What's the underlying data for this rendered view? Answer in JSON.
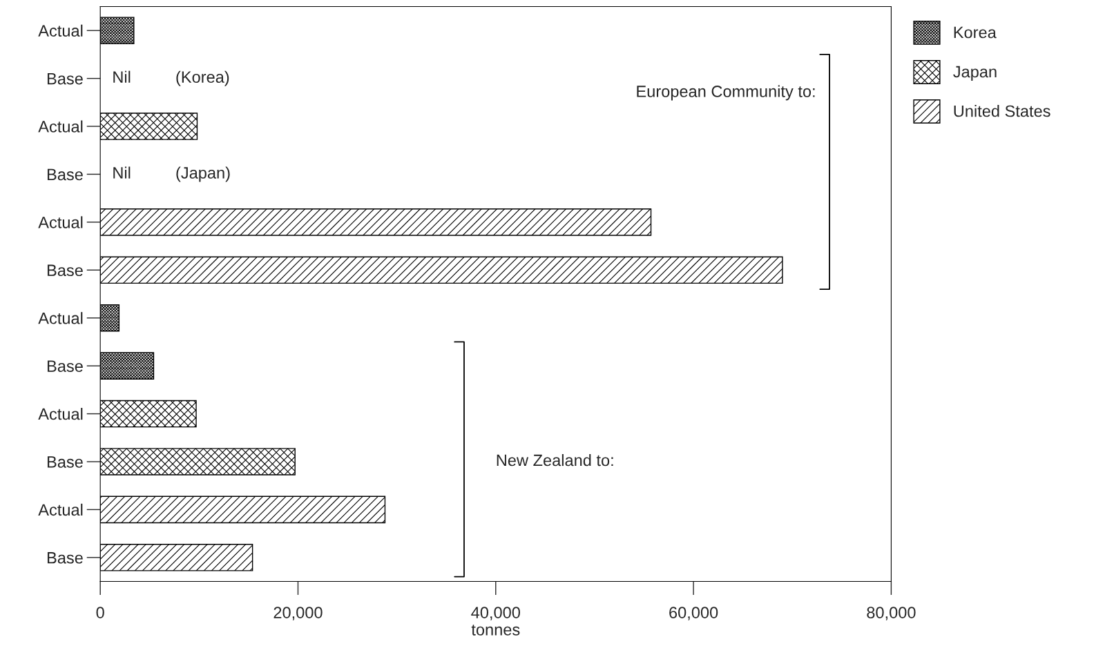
{
  "chart_data": {
    "type": "bar",
    "orientation": "horizontal",
    "xlabel": "tonnes",
    "categories": [
      "Actual",
      "Base",
      "Actual",
      "Base",
      "Actual",
      "Base",
      "Actual",
      "Base",
      "Actual",
      "Base",
      "Actual",
      "Base"
    ],
    "series": [
      {
        "name": "Korea",
        "color": "#000000",
        "values": [
          3400,
          null,
          null,
          null,
          null,
          null,
          1900,
          5400,
          null,
          null,
          null,
          null
        ]
      },
      {
        "name": "Japan",
        "color": "#000000",
        "values": [
          null,
          null,
          9800,
          null,
          null,
          null,
          null,
          null,
          9700,
          19700,
          null,
          null
        ]
      },
      {
        "name": "United States",
        "color": "#000000",
        "values": [
          null,
          null,
          null,
          null,
          55700,
          69000,
          null,
          null,
          null,
          null,
          28800,
          15400
        ]
      }
    ],
    "xlim": [
      0,
      80000
    ],
    "xticks": [
      0,
      {
        "value": 20000,
        "label": "20,000"
      },
      {
        "value": 40000,
        "label": "40,000"
      },
      {
        "value": 60000,
        "label": "60,000"
      },
      {
        "value": 80000,
        "label": "80,000"
      }
    ],
    "annotations": [
      "Nil",
      "(Korea)",
      "Nil",
      "(Japan)",
      "European Community to:",
      "New Zealand to:"
    ],
    "legend": "top right",
    "grid": false
  }
}
